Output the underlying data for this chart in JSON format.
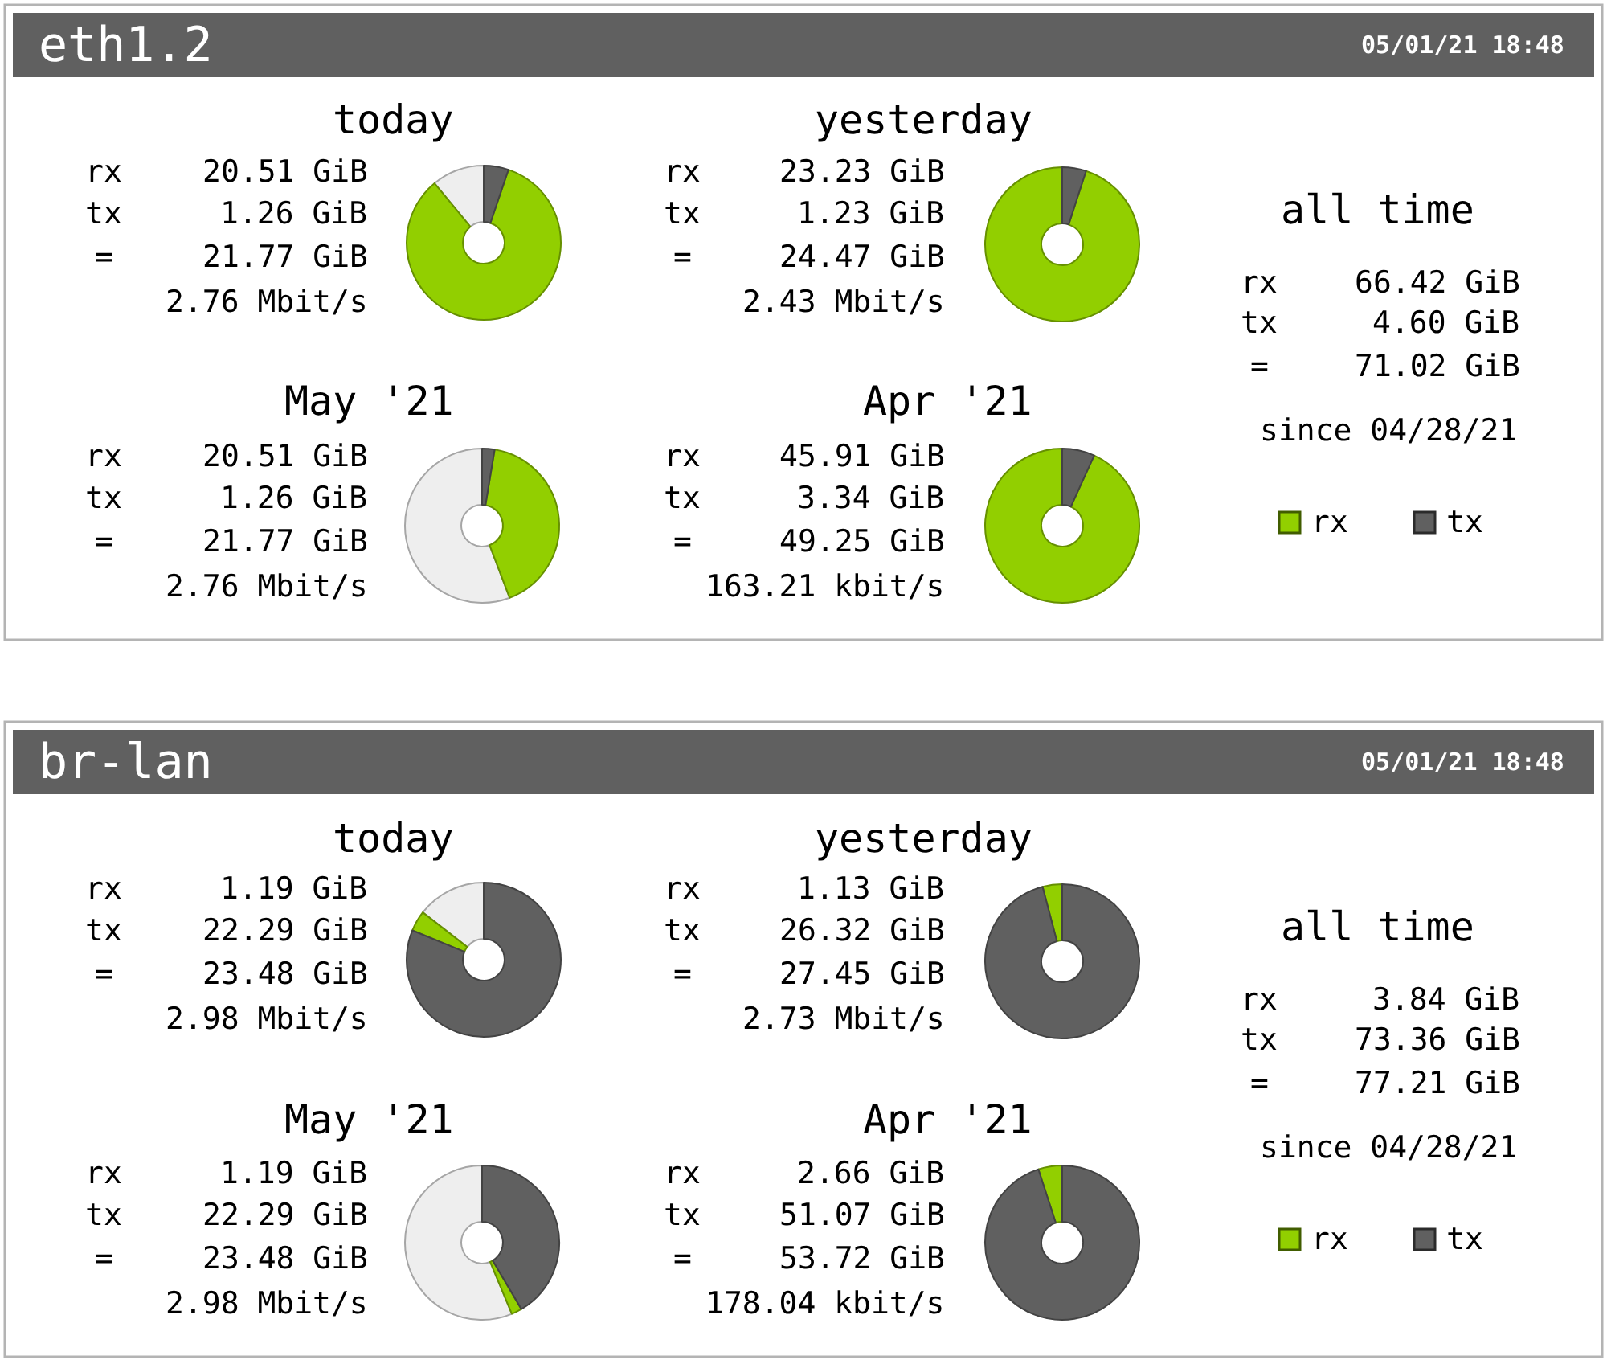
{
  "chart_data": [
    {
      "type": "other",
      "title": "eth1.2",
      "subtitle": "05/01/21 18:48"
    },
    {
      "type": "donut",
      "title": "today",
      "categories": [
        null,
        "rx",
        "tx"
      ],
      "values": [
        11.0,
        83.8,
        5.2
      ],
      "colors": [
        "#eeeeee",
        "#92cf00",
        "#606060"
      ],
      "annotations": [
        "rx",
        "20.51 GiB",
        "tx",
        "1.26 GiB",
        "=",
        "21.77 GiB",
        "2.76 Mbit/s"
      ],
      "legend": "right"
    },
    {
      "type": "donut",
      "title": "yesterday",
      "categories": [
        null,
        null
      ],
      "values": [
        95.0,
        5.0
      ],
      "colors": [
        "#92cf00",
        "#606060"
      ],
      "annotations": [
        "rx",
        "23.23 GiB",
        "tx",
        "1.23 GiB",
        "=",
        "24.47 GiB",
        "2.43 Mbit/s"
      ]
    },
    {
      "type": "other",
      "title": "all time",
      "annotations": [
        "rx",
        "66.42 GiB",
        "tx",
        "4.60 GiB",
        "=",
        "71.02 GiB",
        "since 04/28/21"
      ]
    },
    {
      "type": "donut",
      "title": "May '21",
      "categories": [
        null,
        null,
        null
      ],
      "values": [
        55.8,
        41.6,
        2.6
      ],
      "colors": [
        "#eeeeee",
        "#92cf00",
        "#606060"
      ],
      "annotations": [
        "rx",
        "20.51 GiB",
        "tx",
        "1.26 GiB",
        "=",
        "21.77 GiB",
        "2.76 Mbit/s"
      ]
    },
    {
      "type": "donut",
      "title": "Apr '21",
      "categories": [
        null,
        null
      ],
      "values": [
        93.2,
        6.8
      ],
      "colors": [
        "#92cf00",
        "#606060"
      ],
      "annotations": [
        "rx",
        "45.91 GiB",
        "tx",
        "3.34 GiB",
        "=",
        "49.25 GiB",
        "163.21 kbit/s"
      ]
    },
    {
      "type": "other",
      "title": "br-lan",
      "subtitle": "05/01/21 18:48"
    },
    {
      "type": "donut",
      "title": "today",
      "categories": [
        null,
        "rx",
        "tx"
      ],
      "values": [
        14.5,
        4.3,
        81.2
      ],
      "colors": [
        "#eeeeee",
        "#92cf00",
        "#606060"
      ],
      "annotations": [
        "rx",
        "1.19 GiB",
        "tx",
        "22.29 GiB",
        "=",
        "23.48 GiB",
        "2.98 Mbit/s"
      ],
      "legend": "right"
    },
    {
      "type": "donut",
      "title": "yesterday",
      "categories": [
        null,
        null
      ],
      "values": [
        4.1,
        95.9
      ],
      "colors": [
        "#92cf00",
        "#606060"
      ],
      "annotations": [
        "rx",
        "1.13 GiB",
        "tx",
        "26.32 GiB",
        "=",
        "27.45 GiB",
        "2.73 Mbit/s"
      ]
    },
    {
      "type": "other",
      "title": "all time",
      "annotations": [
        "rx",
        "3.84 GiB",
        "tx",
        "73.36 GiB",
        "=",
        "77.21 GiB",
        "since 04/28/21"
      ]
    },
    {
      "type": "donut",
      "title": "May '21",
      "categories": [
        null,
        null,
        null
      ],
      "values": [
        56.3,
        2.2,
        41.5
      ],
      "colors": [
        "#eeeeee",
        "#92cf00",
        "#606060"
      ],
      "annotations": [
        "rx",
        "1.19 GiB",
        "tx",
        "22.29 GiB",
        "=",
        "23.48 GiB",
        "2.98 Mbit/s"
      ]
    },
    {
      "type": "donut",
      "title": "Apr '21",
      "categories": [
        null,
        null
      ],
      "values": [
        5.0,
        95.0
      ],
      "colors": [
        "#92cf00",
        "#606060"
      ],
      "annotations": [
        "rx",
        "2.66 GiB",
        "tx",
        "51.07 GiB",
        "=",
        "53.72 GiB",
        "178.04 kbit/s"
      ]
    }
  ]
}
